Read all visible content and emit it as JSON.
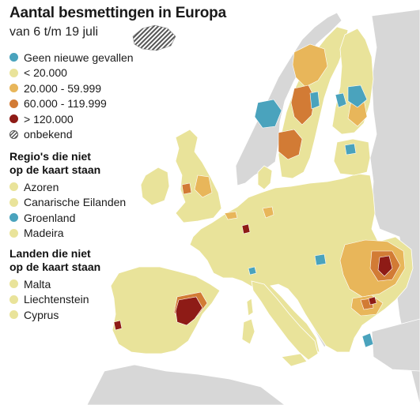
{
  "title": "Aantal besmettingen in Europa",
  "subtitle": "van 6 t/m 19 juli",
  "colors": {
    "sea": "#ffffff",
    "non_eu_land": "#d7d7d7",
    "base_land": "#e9e39a",
    "border": "#ffffff"
  },
  "legend": {
    "items": [
      {
        "label": "Geen nieuwe gevallen",
        "color": "#4aa3bd",
        "pattern": "solid"
      },
      {
        "label": "< 20.000",
        "color": "#e9e39a",
        "pattern": "solid"
      },
      {
        "label": "20.000 - 59.999",
        "color": "#e8b65a",
        "pattern": "solid"
      },
      {
        "label": "60.000 - 119.999",
        "color": "#d27b35",
        "pattern": "solid"
      },
      {
        "label": "> 120.000",
        "color": "#8e1b16",
        "pattern": "solid"
      },
      {
        "label": "onbekend",
        "color": "#555555",
        "pattern": "hatch"
      }
    ]
  },
  "regions_not_on_map": {
    "title_line1": "Regio's die niet",
    "title_line2": "op de kaart staan",
    "items": [
      {
        "label": "Azoren",
        "color": "#e9e39a"
      },
      {
        "label": "Canarische Eilanden",
        "color": "#e9e39a"
      },
      {
        "label": "Groenland",
        "color": "#4aa3bd"
      },
      {
        "label": "Madeira",
        "color": "#e9e39a"
      }
    ]
  },
  "countries_not_on_map": {
    "title_line1": "Landen die niet",
    "title_line2": "op de kaart staan",
    "items": [
      {
        "label": "Malta",
        "color": "#e9e39a"
      },
      {
        "label": "Liechtenstein",
        "color": "#e9e39a"
      },
      {
        "label": "Cyprus",
        "color": "#e9e39a"
      }
    ]
  }
}
